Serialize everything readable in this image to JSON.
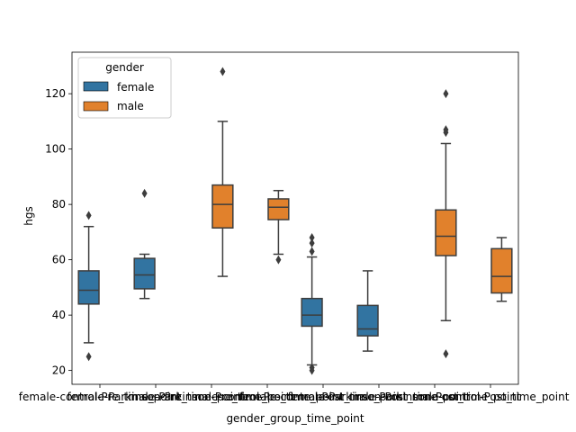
{
  "chart_data": {
    "type": "boxplot",
    "xlabel": "gender_group_time_point",
    "ylabel": "hgs",
    "ylim": [
      15,
      135
    ],
    "yticks": [
      20,
      40,
      60,
      80,
      100,
      120
    ],
    "categories": [
      "female-control-Pre_time_point",
      "female-Parkinson-Pre_time_point",
      "male-Parkinson-Pre_time_point",
      "male-control-Pre_time_point",
      "female-control-Post_time_point",
      "female-Parkinson-Post_time_point",
      "male-Parkinson-Post_time_point",
      "male-control-Post_time_point"
    ],
    "legend": {
      "title": "gender",
      "position": "top-left",
      "entries": [
        {
          "label": "female",
          "color": "#3274a1"
        },
        {
          "label": "male",
          "color": "#e1812c"
        }
      ]
    },
    "boxes": [
      {
        "category_index": 0,
        "series": "female",
        "whisker_low": 30,
        "q1": 44,
        "median": 49,
        "q3": 56,
        "whisker_high": 72,
        "outliers": [
          25,
          76
        ]
      },
      {
        "category_index": 1,
        "series": "female",
        "whisker_low": 46,
        "q1": 49.5,
        "median": 54.5,
        "q3": 60.5,
        "whisker_high": 62,
        "outliers": [
          84
        ]
      },
      {
        "category_index": 2,
        "series": "male",
        "whisker_low": 54,
        "q1": 71.5,
        "median": 80,
        "q3": 87,
        "whisker_high": 110,
        "outliers": [
          128
        ]
      },
      {
        "category_index": 3,
        "series": "male",
        "whisker_low": 62,
        "q1": 74.5,
        "median": 79,
        "q3": 82,
        "whisker_high": 85,
        "outliers": [
          60
        ]
      },
      {
        "category_index": 4,
        "series": "female",
        "whisker_low": 22,
        "q1": 36,
        "median": 40,
        "q3": 46,
        "whisker_high": 61,
        "outliers": [
          20,
          21,
          63,
          66,
          68
        ]
      },
      {
        "category_index": 5,
        "series": "female",
        "whisker_low": 27,
        "q1": 32.5,
        "median": 35,
        "q3": 43.5,
        "whisker_high": 56,
        "outliers": []
      },
      {
        "category_index": 6,
        "series": "male",
        "whisker_low": 38,
        "q1": 61.5,
        "median": 68.5,
        "q3": 78,
        "whisker_high": 102,
        "outliers": [
          26,
          106,
          107,
          120
        ]
      },
      {
        "category_index": 7,
        "series": "male",
        "whisker_low": 45,
        "q1": 48,
        "median": 54,
        "q3": 64,
        "whisker_high": 68,
        "outliers": []
      }
    ]
  }
}
